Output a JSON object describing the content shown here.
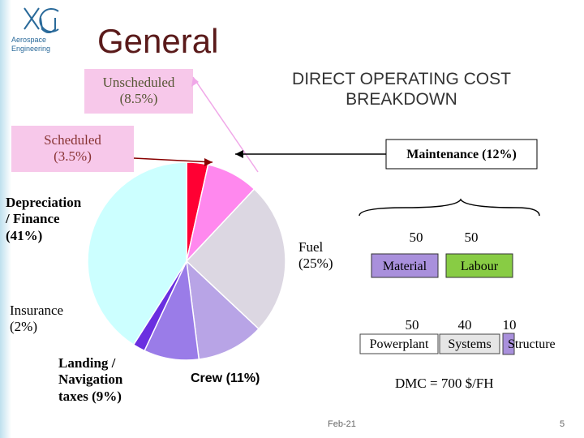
{
  "header": {
    "logo": "Aerospace\nEngineering",
    "title": "General",
    "subtitle": "DIRECT OPERATING COST\nBREAKDOWN"
  },
  "chart_data": {
    "type": "pie",
    "categories": [
      "Scheduled\n(3.5%)",
      "Unscheduled\n(8.5%)",
      "Fuel\n(25%)",
      "Crew (11%)",
      "Landing /\nNavigation\ntaxes (9%)",
      "Insurance\n(2%)",
      "Depreciation\n/ Finance\n(41%)"
    ],
    "values": [
      3.5,
      8.5,
      25,
      11,
      9,
      2,
      41
    ],
    "colors": [
      "#ff0033",
      "#ff88ee",
      "#dcd7e2",
      "#b8a4e6",
      "#9a7ce8",
      "#6a2fe0",
      "#ccffff"
    ],
    "annotation": "Maintenance (12%)"
  },
  "maintenance": {
    "top": [
      {
        "value": 50,
        "label": "Material"
      },
      {
        "value": 50,
        "label": "Labour"
      }
    ],
    "bottom": [
      {
        "value": 50,
        "label": "Powerplant"
      },
      {
        "value": 40,
        "label": "Systems"
      },
      {
        "value": 10,
        "label": "Structure"
      }
    ],
    "dmc": "DMC = 700 $/FH"
  },
  "footer": {
    "date": "Feb-21",
    "page": "5"
  }
}
